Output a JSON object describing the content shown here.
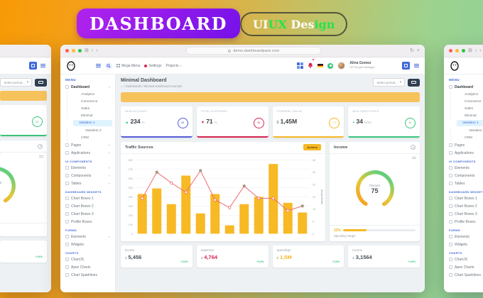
{
  "hero": {
    "title": "DASHBOARD",
    "subtitle_parts": [
      {
        "text": "UI",
        "color": "#ffffff"
      },
      {
        "text": "UX",
        "color": "#23e44d"
      },
      {
        "text": " Des",
        "color": "#ffffff"
      },
      {
        "text": "ign",
        "color": "#23e44d"
      }
    ]
  },
  "browser": {
    "url": "demo.dashboardpack.com"
  },
  "app_header": {
    "menu": [
      {
        "label": "Mega Menu"
      },
      {
        "label": "Settings"
      },
      {
        "label": "Projects"
      }
    ],
    "user": {
      "name": "Alina Gomez",
      "role": "VP People Manager"
    }
  },
  "sidebar": {
    "title": "MENU",
    "entries": [
      {
        "t": "item",
        "label": "Dashboard",
        "bold": true,
        "chev": true
      },
      {
        "t": "sub",
        "label": "Analytics"
      },
      {
        "t": "sub",
        "label": "Commerce"
      },
      {
        "t": "sub",
        "label": "Sales"
      },
      {
        "t": "sub",
        "label": "Minimal"
      },
      {
        "t": "sub2",
        "label": "Variation 1",
        "active": true
      },
      {
        "t": "sub2",
        "label": "Variation 2"
      },
      {
        "t": "sub",
        "label": "CRM"
      },
      {
        "t": "item",
        "label": "Pages",
        "chev": true
      },
      {
        "t": "item",
        "label": "Applications",
        "chev": true
      },
      {
        "t": "header",
        "label": "UI COMPONENTS"
      },
      {
        "t": "item",
        "label": "Elements",
        "chev": true
      },
      {
        "t": "item",
        "label": "Components",
        "chev": true
      },
      {
        "t": "item",
        "label": "Tables",
        "chev": true
      },
      {
        "t": "header",
        "label": "DASHBOARD WIDGETS"
      },
      {
        "t": "item",
        "label": "Chart Boxes 1"
      },
      {
        "t": "item",
        "label": "Chart Boxes 2"
      },
      {
        "t": "item",
        "label": "Chart Boxes 3"
      },
      {
        "t": "item",
        "label": "Profile Boxes"
      },
      {
        "t": "header",
        "label": "FORMS"
      },
      {
        "t": "item",
        "label": "Elements",
        "chev": true
      },
      {
        "t": "item",
        "label": "Widgets"
      },
      {
        "t": "header",
        "label": "CHARTS"
      },
      {
        "t": "item",
        "label": "ChartJS"
      },
      {
        "t": "item",
        "label": "Apex Charts"
      },
      {
        "t": "item",
        "label": "Chart Sparklines"
      }
    ]
  },
  "page": {
    "title": "Minimal Dashboard",
    "breadcrumb_home": "⌂",
    "breadcrumb": "/ Dashboards / Minimal Dashboard Example",
    "period_placeholder": "Select period..."
  },
  "kpi_cards": [
    {
      "label": "NEW ACCOUNT",
      "trend": "up",
      "value": "234",
      "unit": "%",
      "accent": "#545cd8",
      "ring_value": "58"
    },
    {
      "label": "TOTAL EXPENSES",
      "trend": "down",
      "value": "71",
      "unit": "%",
      "accent": "#d92550",
      "ring_value": "45"
    },
    {
      "label": "COMPANY VALUE",
      "trend": "currency",
      "value": "1,45M",
      "unit": "",
      "accent": "#f7b924",
      "ring_value": "72"
    },
    {
      "label": "NEW EMPLOYEES",
      "trend": "plus",
      "value": "34",
      "unit": "hires",
      "accent": "#3ac47d",
      "ring_value": "62"
    }
  ],
  "traffic": {
    "title": "Traffic Sources",
    "action_label": "Actions"
  },
  "chart_data": {
    "type": "bar+line",
    "title": "Traffic Sources",
    "categories": [
      "1",
      "2",
      "3",
      "4",
      "5",
      "6",
      "7",
      "8",
      "9",
      "10",
      "11",
      "12"
    ],
    "bar_series": {
      "name": "Traffic",
      "color": "#f7b924",
      "values": [
        430,
        490,
        320,
        630,
        220,
        430,
        90,
        320,
        400,
        755,
        335,
        230
      ]
    },
    "line_series": {
      "name": "Social Media",
      "color": "#f16d75",
      "values": [
        23,
        40,
        33,
        27,
        41,
        22,
        17,
        31,
        23,
        23,
        15,
        18
      ],
      "green_marker_indices": [
        1,
        4,
        7,
        11
      ],
      "green_marker_color": "#3ac47d"
    },
    "left_axis": {
      "min": 0,
      "max": 800,
      "step": 100
    },
    "right_axis": {
      "min": 0,
      "max": 48,
      "step": 8,
      "label": "Social Media"
    },
    "grid": true,
    "legend": false
  },
  "income": {
    "title": "Income",
    "center_label": "Percent",
    "percent": "75",
    "target_value": "32%",
    "target_label": "Spending Target",
    "progress_pct": 32
  },
  "stat_cards": [
    {
      "label": "Income",
      "prefix": "$",
      "value": "5,456",
      "delta": "+14%",
      "value_color": "#495057"
    },
    {
      "label": "Expenses",
      "prefix": "$",
      "value": "4,764",
      "delta": "+14%",
      "value_color": "#d92550"
    },
    {
      "label": "Spendings",
      "prefix": "$",
      "value": "1,5M",
      "delta": "+14%",
      "value_color": "#f7b924"
    },
    {
      "label": "Income",
      "prefix": "$",
      "value": "3,1564",
      "delta": "+14%",
      "value_color": "#495057"
    }
  ],
  "colors": {
    "accent_blue": "#3f6ad8",
    "warning": "#f7b924",
    "danger": "#d92550",
    "success": "#3ac47d",
    "banner": "#f6c25c",
    "purple_badge": "#8b17f0"
  }
}
